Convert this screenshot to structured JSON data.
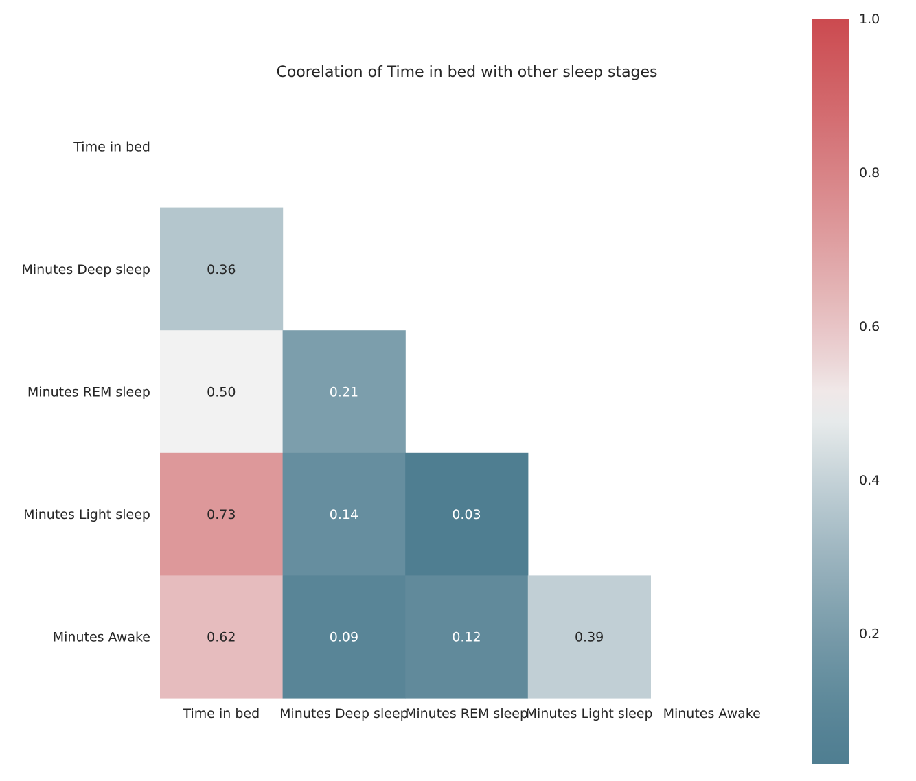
{
  "chart_data": {
    "type": "heatmap",
    "title": "Coorelation of Time in bed with other sleep stages",
    "xlabel": "",
    "ylabel": "",
    "row_labels": [
      "Time in bed",
      "Minutes Deep sleep",
      "Minutes REM sleep",
      "Minutes Light sleep",
      "Minutes Awake"
    ],
    "col_labels": [
      "Time in bed",
      "Minutes Deep sleep",
      "Minutes REM sleep",
      "Minutes Light sleep",
      "Minutes Awake"
    ],
    "mask": "upper-triangle-including-diagonal",
    "cells": [
      {
        "row": 1,
        "col": 0,
        "value": 0.36,
        "label": "0.36"
      },
      {
        "row": 2,
        "col": 0,
        "value": 0.5,
        "label": "0.50"
      },
      {
        "row": 2,
        "col": 1,
        "value": 0.21,
        "label": "0.21"
      },
      {
        "row": 3,
        "col": 0,
        "value": 0.73,
        "label": "0.73"
      },
      {
        "row": 3,
        "col": 1,
        "value": 0.14,
        "label": "0.14"
      },
      {
        "row": 3,
        "col": 2,
        "value": 0.03,
        "label": "0.03"
      },
      {
        "row": 4,
        "col": 0,
        "value": 0.62,
        "label": "0.62"
      },
      {
        "row": 4,
        "col": 1,
        "value": 0.09,
        "label": "0.09"
      },
      {
        "row": 4,
        "col": 2,
        "value": 0.12,
        "label": "0.12"
      },
      {
        "row": 4,
        "col": 3,
        "value": 0.39,
        "label": "0.39"
      }
    ],
    "colorbar": {
      "vmin": 0.03,
      "vmax": 1.0,
      "center": 0.5,
      "ticks": [
        0.2,
        0.4,
        0.6,
        0.8,
        1.0
      ],
      "tick_labels": [
        "0.2",
        "0.4",
        "0.6",
        "0.8",
        "1.0"
      ],
      "low_color": "#4f7e91",
      "mid_color": "#f2f2f2",
      "high_color": "#cb4a4f",
      "placement": "right"
    },
    "grid": false
  }
}
